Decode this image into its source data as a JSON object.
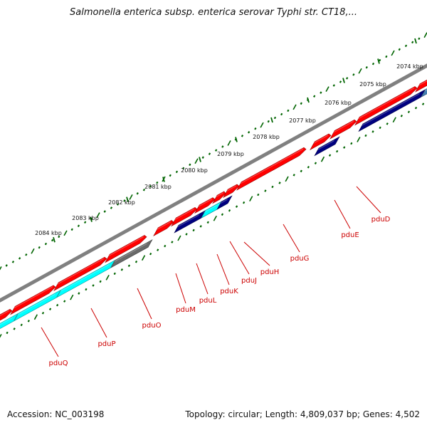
{
  "title": "Salmonella enterica subsp. enterica serovar Typhi str. CT18,...",
  "footer": {
    "accession": "Accession: NC_003198",
    "summary": "Topology: circular; Length: 4,809,037 bp; Genes: 4,502"
  },
  "colors": {
    "backbone": "#808080",
    "forward_gene": "#ff0000",
    "cds_cyan": "#00ffff",
    "cds_navy": "#000080",
    "pseudo_gray": "#696969",
    "tick": "#006400",
    "label": "#cc0000"
  },
  "ticks": [
    {
      "label": "2074 kbp"
    },
    {
      "label": "2075 kbp"
    },
    {
      "label": "2076 kbp"
    },
    {
      "label": "2077 kbp"
    },
    {
      "label": "2078 kbp"
    },
    {
      "label": "2079 kbp"
    },
    {
      "label": "2080 kbp"
    },
    {
      "label": "2081 kbp"
    },
    {
      "label": "2082 kbp"
    },
    {
      "label": "2083 kbp"
    },
    {
      "label": "2084 kbp"
    }
  ],
  "gene_labels": [
    {
      "name": "pduD"
    },
    {
      "name": "pduE"
    },
    {
      "name": "pduG"
    },
    {
      "name": "pduH"
    },
    {
      "name": "pduJ"
    },
    {
      "name": "pduK"
    },
    {
      "name": "pduL"
    },
    {
      "name": "pduM"
    },
    {
      "name": "pduO"
    },
    {
      "name": "pduP"
    },
    {
      "name": "pduQ"
    }
  ]
}
